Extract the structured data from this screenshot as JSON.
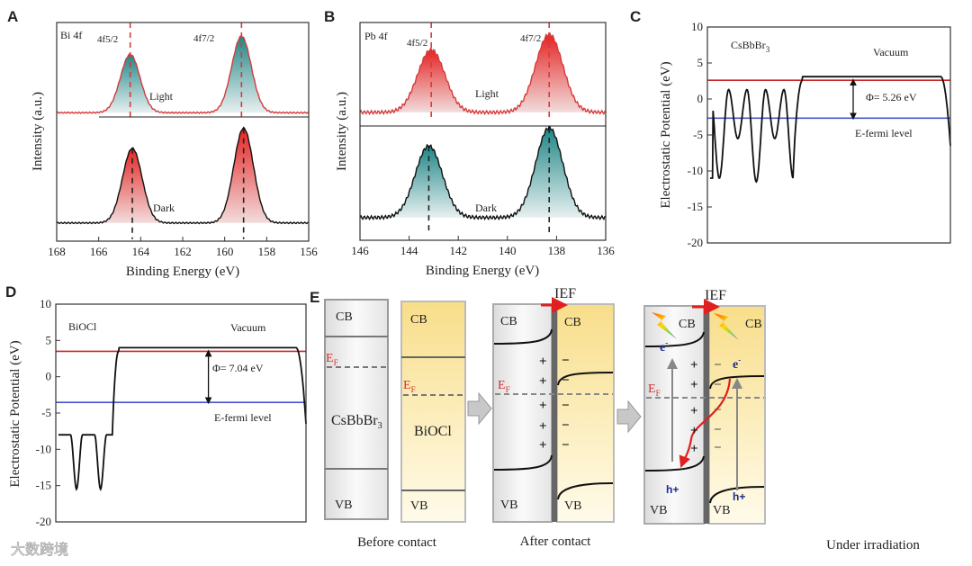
{
  "chart_data": [
    {
      "panel": "A",
      "type": "line",
      "title": "Bi 4f",
      "xlabel": "Binding Energy (eV)",
      "ylabel": "Intensity (a.u.)",
      "xlim": [
        168,
        156
      ],
      "xticks": [
        168,
        166,
        164,
        162,
        160,
        158,
        156
      ],
      "ylim": [
        -0.2,
        2.2
      ],
      "peak_labels": [
        "4f5/2",
        "4f7/2"
      ],
      "series": [
        {
          "name": "Light",
          "offset": 1.21,
          "line_color": "#d63a3a",
          "fill": "teal",
          "peaks": [
            {
              "center": 164.5,
              "height": 0.64,
              "fwhm": 1.1
            },
            {
              "center": 159.2,
              "height": 0.84,
              "fwhm": 1.1
            }
          ]
        },
        {
          "name": "Dark",
          "offset": 0,
          "line_color": "#111111",
          "fill": "red",
          "peaks": [
            {
              "center": 164.4,
              "height": 0.82,
              "fwhm": 1.1
            },
            {
              "center": 159.1,
              "height": 1.04,
              "fwhm": 1.1
            }
          ]
        }
      ]
    },
    {
      "panel": "B",
      "type": "line",
      "title": "Pb 4f",
      "xlabel": "Binding Energy (eV)",
      "ylabel": "Intensity (a.u.)",
      "xlim": [
        146,
        136
      ],
      "xticks": [
        146,
        144,
        142,
        140,
        138,
        136
      ],
      "ylim": [
        -0.2,
        2.2
      ],
      "peak_labels": [
        "4f5/2",
        "4f7/2"
      ],
      "series": [
        {
          "name": "Light",
          "offset": 1.21,
          "line_color": "#d63a3a",
          "fill": "red",
          "peaks": [
            {
              "center": 143.1,
              "height": 0.69,
              "fwhm": 1.3
            },
            {
              "center": 138.3,
              "height": 0.86,
              "fwhm": 1.3
            }
          ]
        },
        {
          "name": "Dark",
          "offset": 0.05,
          "line_color": "#111111",
          "fill": "teal",
          "peaks": [
            {
              "center": 143.2,
              "height": 0.79,
              "fwhm": 1.3
            },
            {
              "center": 138.3,
              "height": 0.99,
              "fwhm": 1.3
            }
          ]
        }
      ]
    },
    {
      "panel": "C",
      "type": "line",
      "material": "CsBbBr",
      "material_sub": "3",
      "ylabel": "Electrostatic Potential (eV)",
      "ylim": [
        -20,
        10
      ],
      "yticks": [
        -20,
        -15,
        -10,
        -5,
        0,
        5,
        10
      ],
      "vacuum_level": 2.6,
      "fermi_level": -2.66,
      "work_function_label": "Φ= 5.26 eV",
      "vacuum_label": "Vacuum",
      "fermi_label": "E-fermi level",
      "well_minima": [
        -11,
        -5.5,
        -11.5,
        -5.5,
        -11
      ],
      "well_top": 1.3,
      "edge_value": -7
    },
    {
      "panel": "D",
      "type": "line",
      "material": "BiOCl",
      "material_sub": "",
      "ylabel": "Electrostatic Potential (eV)",
      "ylim": [
        -20,
        10
      ],
      "yticks": [
        -20,
        -15,
        -10,
        -5,
        0,
        5,
        10
      ],
      "vacuum_level": 3.5,
      "fermi_level": -3.54,
      "work_function_label": "Φ= 7.04 eV",
      "vacuum_label": "Vacuum",
      "fermi_label": "E-fermi level",
      "well_minima": [
        -8,
        -15.5,
        -8,
        -15.5,
        -8
      ],
      "well_top": -8,
      "edge_value": -7
    }
  ],
  "diagram": {
    "panel": "E",
    "cb": "CB",
    "vb": "VB",
    "ef_main": "E",
    "ef_sub": "F",
    "material1": "CsBbBr",
    "material1_sub": "3",
    "material2": "BiOCl",
    "ief": "IEF",
    "electron": "e",
    "electron_sup": "-",
    "hole": "h+",
    "plus": "+",
    "minus": "−",
    "captions": [
      "Before contact",
      "After contact",
      "Under irradiation"
    ]
  },
  "watermark": "大数跨境"
}
